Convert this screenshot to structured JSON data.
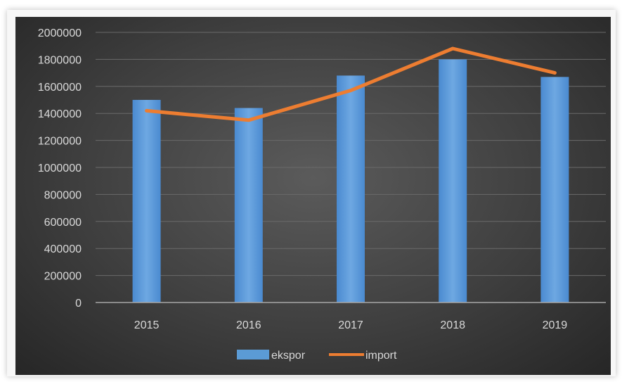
{
  "chart_data": {
    "type": "bar",
    "title": "",
    "xlabel": "",
    "ylabel": "",
    "categories": [
      "2015",
      "2016",
      "2017",
      "2018",
      "2019"
    ],
    "ylim": [
      0,
      2000000
    ],
    "yticks": [
      "0",
      "200000",
      "400000",
      "600000",
      "800000",
      "1000000",
      "1200000",
      "1400000",
      "1600000",
      "1800000",
      "2000000"
    ],
    "grid": true,
    "legend_position": "bottom",
    "series": [
      {
        "name": "ekspor",
        "type": "bar",
        "color": "#5b9bd5",
        "values": [
          1500000,
          1440000,
          1680000,
          1800000,
          1670000
        ]
      },
      {
        "name": "import",
        "type": "line",
        "color": "#ed7d31",
        "values": [
          1420000,
          1350000,
          1570000,
          1880000,
          1700000
        ]
      }
    ]
  }
}
